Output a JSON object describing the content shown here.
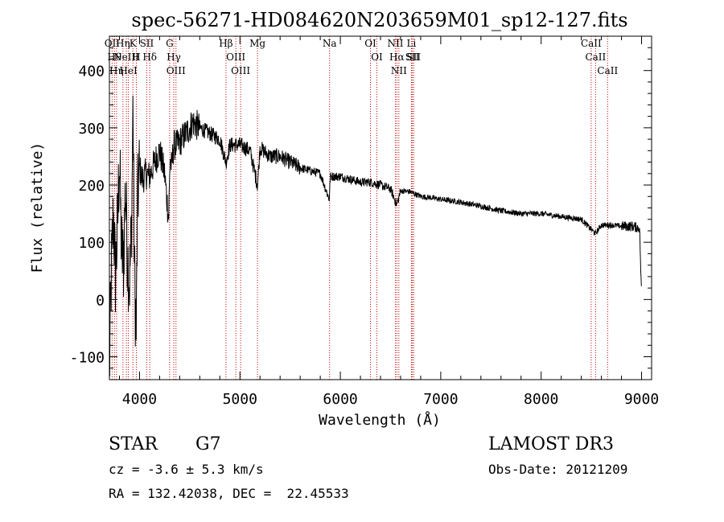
{
  "chart_data": {
    "type": "line",
    "title": "spec-56271-HD084620N203659M01_sp12-127.fits",
    "xlabel": "Wavelength (Å)",
    "ylabel": "Flux (relative)",
    "xlim": [
      3700,
      9100
    ],
    "ylim": [
      -140,
      460
    ],
    "xticks": [
      "4000",
      "5000",
      "6000",
      "7000",
      "8000",
      "9000"
    ],
    "yticks": [
      "-100",
      "0",
      "100",
      "200",
      "300",
      "400"
    ],
    "grid": false,
    "series": [
      {
        "name": "spectrum",
        "x": [
          3700,
          3720,
          3740,
          3760,
          3780,
          3800,
          3820,
          3840,
          3860,
          3880,
          3900,
          3920,
          3935,
          3950,
          3968,
          3980,
          4000,
          4030,
          4060,
          4100,
          4150,
          4200,
          4250,
          4290,
          4305,
          4320,
          4340,
          4380,
          4420,
          4460,
          4500,
          4530,
          4600,
          4700,
          4800,
          4861,
          4900,
          5000,
          5100,
          5175,
          5200,
          5300,
          5400,
          5500,
          5600,
          5700,
          5800,
          5890,
          5900,
          6000,
          6100,
          6200,
          6300,
          6400,
          6500,
          6563,
          6600,
          6700,
          6800,
          6900,
          7000,
          7200,
          7400,
          7600,
          7800,
          8000,
          8200,
          8400,
          8542,
          8600,
          8700,
          8800,
          8900,
          8980,
          9000
        ],
        "values": [
          -130,
          50,
          150,
          40,
          120,
          250,
          90,
          60,
          200,
          80,
          30,
          120,
          345,
          40,
          -60,
          170,
          230,
          210,
          220,
          215,
          240,
          260,
          220,
          140,
          250,
          230,
          270,
          270,
          280,
          290,
          300,
          310,
          300,
          290,
          280,
          240,
          270,
          270,
          260,
          200,
          265,
          250,
          250,
          240,
          230,
          225,
          220,
          175,
          215,
          215,
          210,
          205,
          205,
          200,
          193,
          165,
          190,
          188,
          180,
          178,
          175,
          170,
          163,
          155,
          150,
          150,
          145,
          140,
          115,
          130,
          130,
          128,
          128,
          125,
          5
        ]
      }
    ],
    "line_markers": [
      {
        "wavelength": 3727,
        "label": "OII"
      },
      {
        "wavelength": 3750,
        "label": "Hθ"
      },
      {
        "wavelength": 3771,
        "label": "Hη"
      },
      {
        "wavelength": 3835,
        "label": "Hη"
      },
      {
        "wavelength": 3869,
        "label": "NeIII"
      },
      {
        "wavelength": 3889,
        "label": "HeI"
      },
      {
        "wavelength": 3934,
        "label": "K"
      },
      {
        "wavelength": 3968,
        "label": "H"
      },
      {
        "wavelength": 4072,
        "label": "SII"
      },
      {
        "wavelength": 4102,
        "label": "Hδ"
      },
      {
        "wavelength": 4300,
        "label": "G"
      },
      {
        "wavelength": 4341,
        "label": "Hγ"
      },
      {
        "wavelength": 4363,
        "label": "OIII"
      },
      {
        "wavelength": 4861,
        "label": "Hβ"
      },
      {
        "wavelength": 4959,
        "label": "OIII"
      },
      {
        "wavelength": 5007,
        "label": "OIII"
      },
      {
        "wavelength": 5175,
        "label": "Mg"
      },
      {
        "wavelength": 5893,
        "label": "Na"
      },
      {
        "wavelength": 6300,
        "label": "OI"
      },
      {
        "wavelength": 6364,
        "label": "OI"
      },
      {
        "wavelength": 6548,
        "label": "NII"
      },
      {
        "wavelength": 6563,
        "label": "Hα"
      },
      {
        "wavelength": 6583,
        "label": "NII"
      },
      {
        "wavelength": 6708,
        "label": "Li"
      },
      {
        "wavelength": 6717,
        "label": "SII"
      },
      {
        "wavelength": 6731,
        "label": "SII"
      },
      {
        "wavelength": 8498,
        "label": "CaII"
      },
      {
        "wavelength": 8542,
        "label": "CaII"
      },
      {
        "wavelength": 8662,
        "label": "CaII"
      }
    ]
  },
  "info": {
    "class_label": "STAR",
    "subclass_label": "G7",
    "survey": "LAMOST DR3",
    "cz": "cz = -3.6 ± 5.3 km/s",
    "obs_date": "Obs-Date: 20121209",
    "coords": "RA = 132.42038, DEC =  22.45533"
  },
  "colors": {
    "spectrum": "#000000",
    "markers": "#c00000",
    "background": "#ffffff"
  }
}
